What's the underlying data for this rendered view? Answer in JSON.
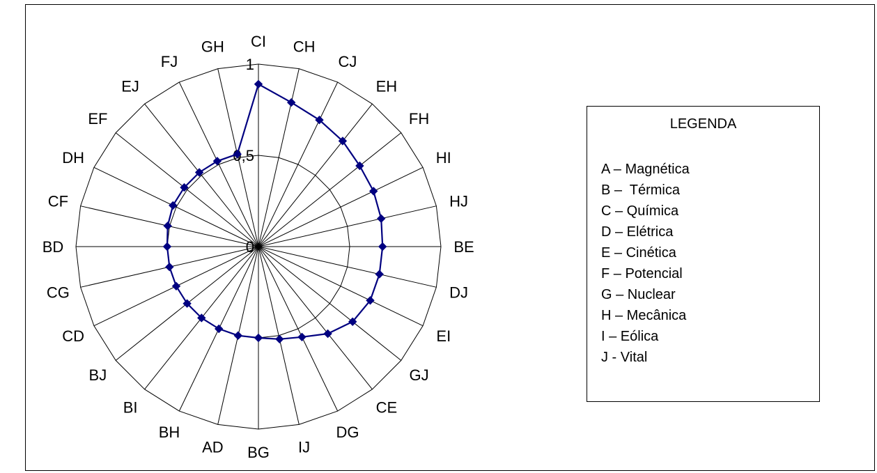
{
  "chart_data": {
    "type": "radar",
    "categories": [
      "CI",
      "CH",
      "CJ",
      "EH",
      "FH",
      "HI",
      "HJ",
      "BE",
      "DJ",
      "EI",
      "GJ",
      "CE",
      "DG",
      "IJ",
      "BG",
      "AD",
      "BH",
      "BI",
      "BJ",
      "CD",
      "CG",
      "BD",
      "CF",
      "DH",
      "EF",
      "EJ",
      "FJ",
      "GH"
    ],
    "series": [
      {
        "values": [
          0.89,
          0.81,
          0.77,
          0.74,
          0.71,
          0.7,
          0.69,
          0.68,
          0.68,
          0.68,
          0.66,
          0.61,
          0.55,
          0.52,
          0.5,
          0.5,
          0.5,
          0.5,
          0.5,
          0.5,
          0.5,
          0.5,
          0.51,
          0.52,
          0.52,
          0.52,
          0.52,
          0.52
        ]
      }
    ],
    "rlim": [
      0,
      1
    ],
    "r_tick_labels": [
      "0",
      "0,5",
      "1"
    ],
    "series_color": "#000080",
    "grid": true
  },
  "legend": {
    "title": "LEGENDA",
    "items": [
      "A – Magnética",
      "B –  Térmica",
      "C – Química",
      "D – Elétrica",
      "E – Cinética",
      "F – Potencial",
      "G – Nuclear",
      "H – Mecânica",
      "I – Eólica",
      "J - Vital"
    ]
  }
}
